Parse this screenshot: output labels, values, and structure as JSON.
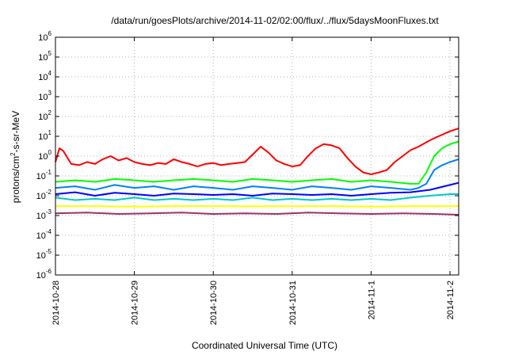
{
  "chart_data": {
    "type": "line",
    "title": "/data/run/goesPlots/archive/2014-11-02/02:00/flux/../flux/5daysMoonFluxes.txt",
    "xlabel": "Coordinated Universal Time (UTC)",
    "ylabel": {
      "base": "protons/cm",
      "sup": "2",
      "rest": "-s-sr-MeV"
    },
    "y_scale": "log",
    "ylim": [
      1e-06,
      1000000.0
    ],
    "xlim": [
      0,
      5.11
    ],
    "x_units": "days since 2014-10-28",
    "y_ticks": [
      {
        "exp": "-6",
        "value": 1e-06
      },
      {
        "exp": "-5",
        "value": 1e-05
      },
      {
        "exp": "-4",
        "value": 0.0001
      },
      {
        "exp": "-3",
        "value": 0.001
      },
      {
        "exp": "-2",
        "value": 0.01
      },
      {
        "exp": "-1",
        "value": 0.1
      },
      {
        "exp": "0",
        "value": 1
      },
      {
        "exp": "1",
        "value": 10
      },
      {
        "exp": "2",
        "value": 100
      },
      {
        "exp": "3",
        "value": 1000.0
      },
      {
        "exp": "4",
        "value": 10000.0
      },
      {
        "exp": "5",
        "value": 100000.0
      },
      {
        "exp": "6",
        "value": 1000000.0
      }
    ],
    "y_tick_base": "10",
    "x_ticks": [
      {
        "label": "2014-10-28",
        "value": 0
      },
      {
        "label": "2014-10-29",
        "value": 1
      },
      {
        "label": "2014-10-30",
        "value": 2
      },
      {
        "label": "2014-10-31",
        "value": 3
      },
      {
        "label": "2014-11-1",
        "value": 4
      },
      {
        "label": "2014-11-2",
        "value": 5
      }
    ],
    "grid": true,
    "series": [
      {
        "color": "#ff0000",
        "x": [
          0,
          0.05,
          0.1,
          0.2,
          0.3,
          0.4,
          0.5,
          0.6,
          0.7,
          0.8,
          0.9,
          1.0,
          1.1,
          1.2,
          1.3,
          1.4,
          1.5,
          1.6,
          1.7,
          1.8,
          1.9,
          2.0,
          2.1,
          2.2,
          2.3,
          2.4,
          2.5,
          2.6,
          2.7,
          2.8,
          2.9,
          3.0,
          3.1,
          3.2,
          3.3,
          3.4,
          3.5,
          3.6,
          3.7,
          3.8,
          3.9,
          4.0,
          4.1,
          4.2,
          4.3,
          4.4,
          4.5,
          4.6,
          4.7,
          4.8,
          4.9,
          5.0,
          5.11
        ],
        "y": [
          0.5,
          2.5,
          1.8,
          0.4,
          0.35,
          0.5,
          0.4,
          0.7,
          1.0,
          0.6,
          0.8,
          0.5,
          0.4,
          0.35,
          0.45,
          0.4,
          0.7,
          0.5,
          0.4,
          0.3,
          0.4,
          0.45,
          0.35,
          0.4,
          0.45,
          0.5,
          1.2,
          3.0,
          1.5,
          0.6,
          0.4,
          0.3,
          0.35,
          1.0,
          2.5,
          4.0,
          3.5,
          2.5,
          0.8,
          0.3,
          0.15,
          0.12,
          0.15,
          0.2,
          0.5,
          1.0,
          2.0,
          3.0,
          5.0,
          8.0,
          12.0,
          18.0,
          25.0
        ]
      },
      {
        "color": "#00ff00",
        "x": [
          0,
          0.25,
          0.5,
          0.75,
          1.0,
          1.25,
          1.5,
          1.75,
          2.0,
          2.25,
          2.5,
          2.75,
          3.0,
          3.25,
          3.5,
          3.75,
          4.0,
          4.25,
          4.5,
          4.6,
          4.7,
          4.8,
          4.9,
          5.0,
          5.11
        ],
        "y": [
          0.05,
          0.06,
          0.05,
          0.07,
          0.06,
          0.05,
          0.06,
          0.07,
          0.06,
          0.05,
          0.07,
          0.06,
          0.05,
          0.06,
          0.07,
          0.05,
          0.06,
          0.05,
          0.04,
          0.04,
          0.15,
          1.0,
          2.5,
          4.0,
          5.5
        ]
      },
      {
        "color": "#0080ff",
        "x": [
          0,
          0.25,
          0.5,
          0.75,
          1.0,
          1.25,
          1.5,
          1.75,
          2.0,
          2.25,
          2.5,
          2.75,
          3.0,
          3.25,
          3.5,
          3.75,
          4.0,
          4.25,
          4.5,
          4.6,
          4.7,
          4.8,
          4.9,
          5.0,
          5.11
        ],
        "y": [
          0.025,
          0.03,
          0.02,
          0.035,
          0.025,
          0.03,
          0.02,
          0.03,
          0.025,
          0.02,
          0.03,
          0.025,
          0.02,
          0.03,
          0.025,
          0.02,
          0.03,
          0.025,
          0.02,
          0.025,
          0.04,
          0.2,
          0.35,
          0.5,
          0.7
        ]
      },
      {
        "color": "#0000ff",
        "x": [
          0,
          0.25,
          0.5,
          0.75,
          1.0,
          1.25,
          1.5,
          1.75,
          2.0,
          2.25,
          2.5,
          2.75,
          3.0,
          3.25,
          3.5,
          3.75,
          4.0,
          4.25,
          4.5,
          4.75,
          5.0,
          5.11
        ],
        "y": [
          0.012,
          0.015,
          0.01,
          0.014,
          0.012,
          0.01,
          0.013,
          0.012,
          0.011,
          0.012,
          0.01,
          0.013,
          0.012,
          0.011,
          0.012,
          0.01,
          0.012,
          0.014,
          0.015,
          0.02,
          0.035,
          0.045
        ]
      },
      {
        "color": "#00c8c8",
        "x": [
          0,
          0.25,
          0.5,
          0.75,
          1.0,
          1.25,
          1.5,
          1.75,
          2.0,
          2.25,
          2.5,
          2.75,
          3.0,
          3.25,
          3.5,
          3.75,
          4.0,
          4.25,
          4.5,
          4.75,
          5.0,
          5.11
        ],
        "y": [
          0.008,
          0.006,
          0.007,
          0.006,
          0.008,
          0.006,
          0.007,
          0.006,
          0.007,
          0.006,
          0.008,
          0.006,
          0.007,
          0.006,
          0.007,
          0.006,
          0.007,
          0.006,
          0.008,
          0.01,
          0.012,
          0.012
        ]
      },
      {
        "color": "#ffff00",
        "x": [
          0,
          0.5,
          1.0,
          1.5,
          2.0,
          2.5,
          3.0,
          3.5,
          4.0,
          4.5,
          5.0,
          5.11
        ],
        "y": [
          0.003,
          0.003,
          0.0028,
          0.003,
          0.003,
          0.0029,
          0.003,
          0.003,
          0.0028,
          0.003,
          0.003,
          0.003
        ]
      },
      {
        "color": "#993366",
        "x": [
          0,
          0.4,
          0.8,
          1.2,
          1.6,
          2.0,
          2.4,
          2.8,
          3.2,
          3.6,
          4.0,
          4.4,
          4.8,
          5.11
        ],
        "y": [
          0.0013,
          0.0014,
          0.0012,
          0.0013,
          0.0014,
          0.0012,
          0.0013,
          0.0012,
          0.0014,
          0.0013,
          0.0012,
          0.0013,
          0.0012,
          0.0011
        ]
      }
    ]
  }
}
